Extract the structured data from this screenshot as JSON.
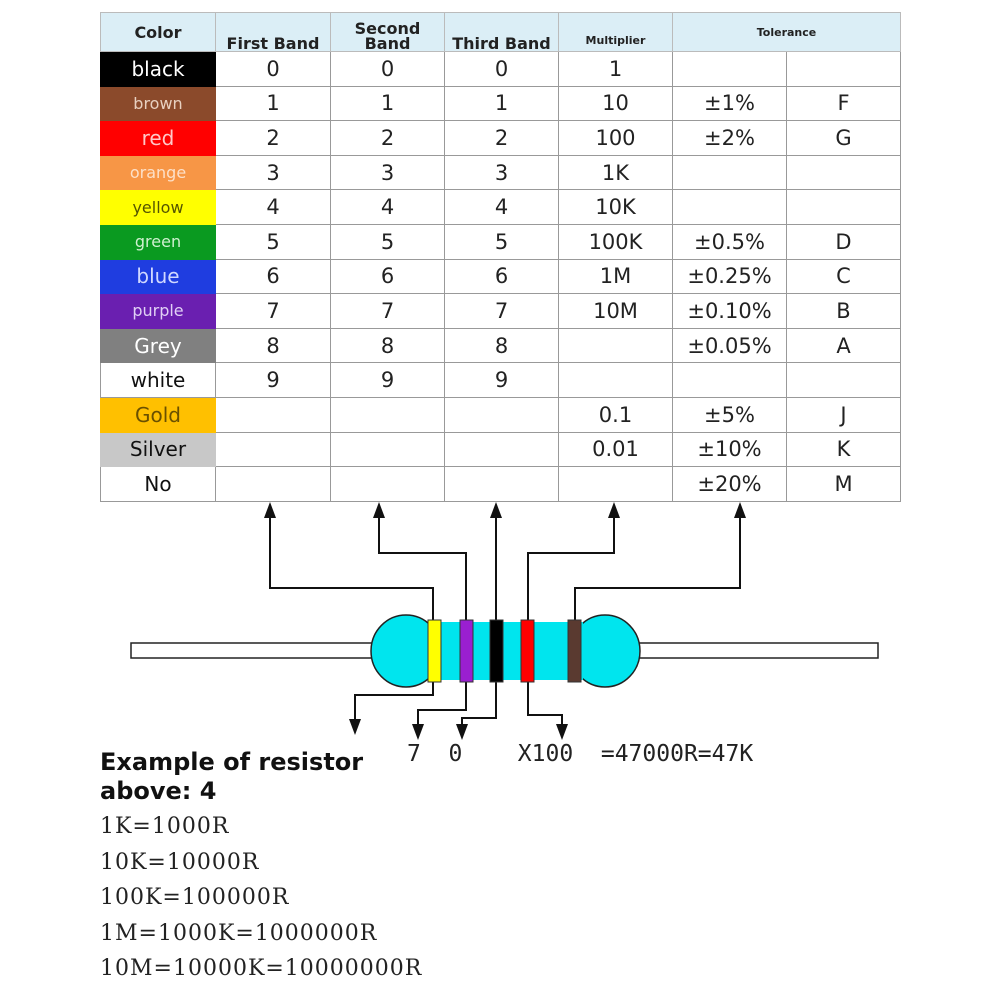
{
  "table": {
    "headers": [
      "Color",
      "First Band",
      "Second Band",
      "Third Band",
      "Multiplier",
      "Tolerance"
    ],
    "rows": [
      {
        "color": "black",
        "bg": "#000000",
        "fg": "#ffffff",
        "first": "0",
        "second": "0",
        "third": "0",
        "multiplier": "1",
        "tolerance": "",
        "code": ""
      },
      {
        "color": "brown",
        "bg": "#8b4a2b",
        "fg": "#e8d0c0",
        "first": "1",
        "second": "1",
        "third": "1",
        "multiplier": "10",
        "tolerance": "±1%",
        "code": "F"
      },
      {
        "color": "red",
        "bg": "#ff0000",
        "fg": "#ffc8c8",
        "first": "2",
        "second": "2",
        "third": "2",
        "multiplier": "100",
        "tolerance": "±2%",
        "code": "G"
      },
      {
        "color": "orange",
        "bg": "#f79646",
        "fg": "#fde0c8",
        "first": "3",
        "second": "3",
        "third": "3",
        "multiplier": "1K",
        "tolerance": "",
        "code": ""
      },
      {
        "color": "yellow",
        "bg": "#ffff00",
        "fg": "#555500",
        "first": "4",
        "second": "4",
        "third": "4",
        "multiplier": "10K",
        "tolerance": "",
        "code": ""
      },
      {
        "color": "green",
        "bg": "#0a9a20",
        "fg": "#d0f0d0",
        "first": "5",
        "second": "5",
        "third": "5",
        "multiplier": "100K",
        "tolerance": "±0.5%",
        "code": "D"
      },
      {
        "color": "blue",
        "bg": "#1f3de0",
        "fg": "#d0d8ff",
        "first": "6",
        "second": "6",
        "third": "6",
        "multiplier": "1M",
        "tolerance": "±0.25%",
        "code": "C"
      },
      {
        "color": "purple",
        "bg": "#6a1fb0",
        "fg": "#e0d0f5",
        "first": "7",
        "second": "7",
        "third": "7",
        "multiplier": "10M",
        "tolerance": "±0.10%",
        "code": "B"
      },
      {
        "color": "Grey",
        "bg": "#808080",
        "fg": "#ffffff",
        "first": "8",
        "second": "8",
        "third": "8",
        "multiplier": "",
        "tolerance": "±0.05%",
        "code": "A"
      },
      {
        "color": "white",
        "bg": "#ffffff",
        "fg": "#111111",
        "first": "9",
        "second": "9",
        "third": "9",
        "multiplier": "",
        "tolerance": "",
        "code": ""
      },
      {
        "color": "Gold",
        "bg": "#ffc000",
        "fg": "#6a5000",
        "first": "",
        "second": "",
        "third": "",
        "multiplier": "0.1",
        "tolerance": "±5%",
        "code": "J"
      },
      {
        "color": "Silver",
        "bg": "#c8c8c8",
        "fg": "#111111",
        "first": "",
        "second": "",
        "third": "",
        "multiplier": "0.01",
        "tolerance": "±10%",
        "code": "K"
      },
      {
        "color": "No",
        "bg": "#ffffff",
        "fg": "#111111",
        "first": "",
        "second": "",
        "third": "",
        "multiplier": "",
        "tolerance": "±20%",
        "code": "M"
      }
    ]
  },
  "resistor": {
    "body_color": "#00e5ee",
    "bands": [
      "#ffff00",
      "#9a1fd0",
      "#000000",
      "#ff0000",
      "#5a3a30"
    ]
  },
  "example": {
    "title": "Example of resistor above: 4",
    "calc": "7  0    X100  =47000R=47K",
    "formulas": [
      "1K=1000R",
      "10K=10000R",
      "100K=100000R",
      "1M=1000K=1000000R",
      "10M=10000K=10000000R"
    ]
  }
}
